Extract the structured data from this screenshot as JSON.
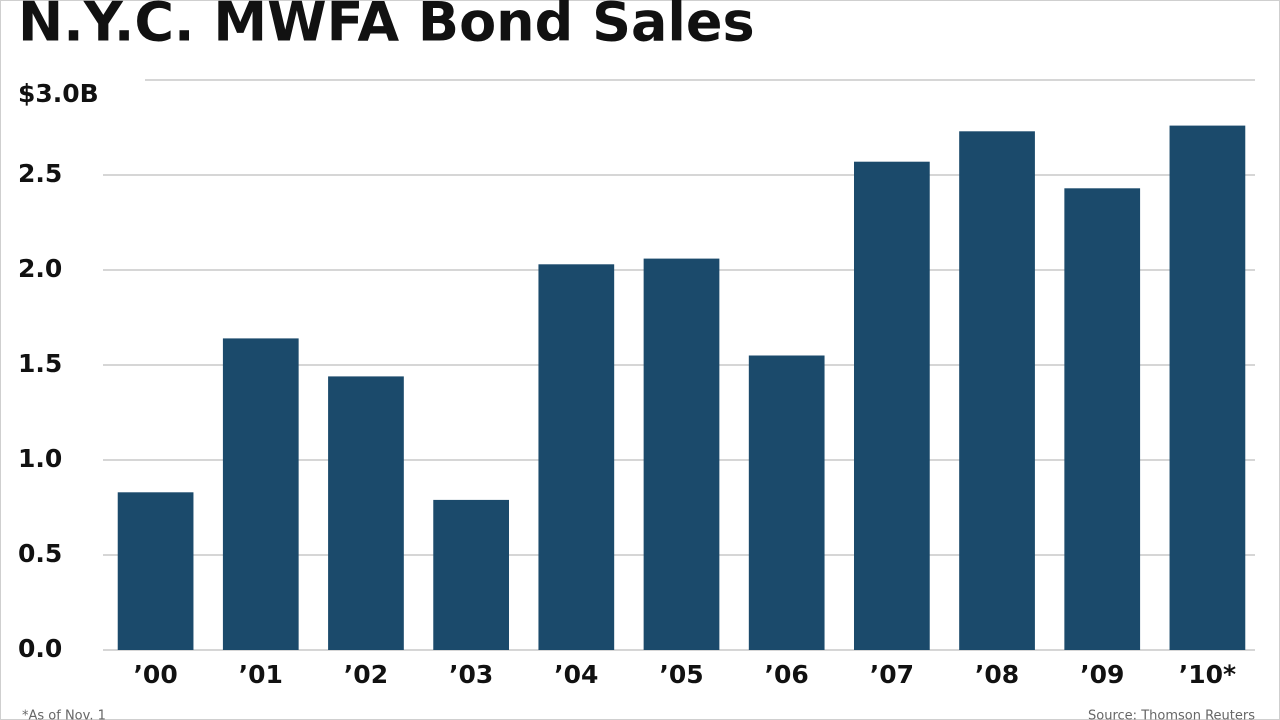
{
  "chart_data": {
    "type": "bar",
    "title": "N.Y.C. MWFA Bond Sales",
    "categories": [
      "’00",
      "’01",
      "’02",
      "’03",
      "’04",
      "’05",
      "’06",
      "’07",
      "’08",
      "’09",
      "’10*"
    ],
    "values": [
      0.83,
      1.64,
      1.44,
      0.79,
      2.03,
      2.06,
      1.55,
      2.57,
      2.73,
      2.43,
      2.76
    ],
    "color": "#1b4a6b",
    "ylim": [
      0,
      3
    ],
    "yticks": [
      {
        "value": 3,
        "label": "$3.0B"
      },
      2.5,
      {
        "value": 2,
        "label": "2.0"
      },
      1.5,
      {
        "value": 1,
        "label": "1.0"
      },
      0.5,
      {
        "value": 0,
        "label": "0.0"
      }
    ],
    "grid": true,
    "footnote": "*As of Nov. 1",
    "source": "Source: Thomson Reuters"
  }
}
